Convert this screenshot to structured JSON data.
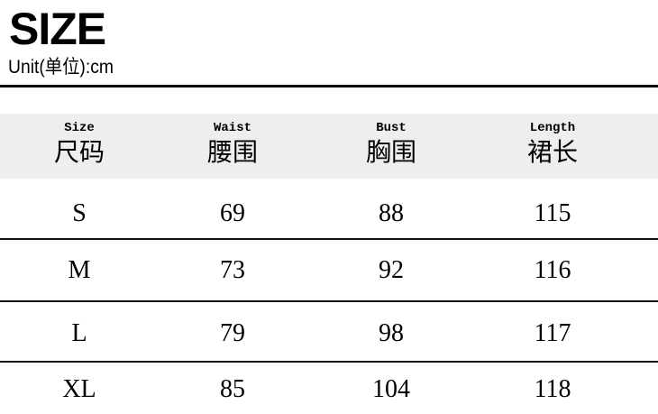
{
  "title": "SIZE",
  "unit": "Unit(单位):cm",
  "table": {
    "headers": [
      {
        "en": "Size",
        "cn": "尺码"
      },
      {
        "en": "Waist",
        "cn": "腰围"
      },
      {
        "en": "Bust",
        "cn": "胸围"
      },
      {
        "en": "Length",
        "cn": "裙长"
      }
    ],
    "rows": [
      [
        "S",
        "69",
        "88",
        "115"
      ],
      [
        "M",
        "73",
        "92",
        "116"
      ],
      [
        "L",
        "79",
        "98",
        "117"
      ],
      [
        "XL",
        "85",
        "104",
        "118"
      ]
    ]
  }
}
